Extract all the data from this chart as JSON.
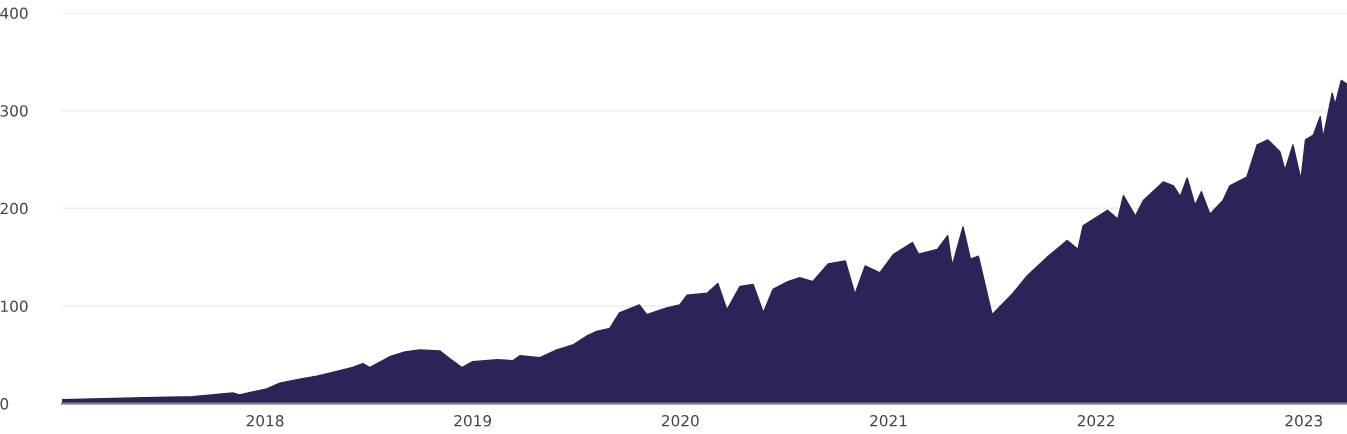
{
  "chart_data": {
    "type": "area",
    "color": "#2b2458",
    "grid": "y",
    "xlim": [
      "2017-01-09",
      "2023-03-18"
    ],
    "xticks": [
      {
        "value": "2018-01-01",
        "label": "2018"
      },
      {
        "value": "2019-01-01",
        "label": "2019"
      },
      {
        "value": "2020-01-01",
        "label": "2020"
      },
      {
        "value": "2021-01-01",
        "label": "2021"
      },
      {
        "value": "2022-01-01",
        "label": "2022"
      },
      {
        "value": "2023-01-01",
        "label": "2023"
      }
    ],
    "ylim": [
      0,
      400
    ],
    "yticks": [
      0,
      100,
      200,
      300,
      400
    ],
    "x": [
      "2017-01-09",
      "2017-06-03",
      "2017-08-27",
      "2017-11-05",
      "2017-11-17",
      "2018-01-04",
      "2018-01-27",
      "2018-03-03",
      "2018-04-02",
      "2018-04-30",
      "2018-06-04",
      "2018-06-22",
      "2018-07-04",
      "2018-08-08",
      "2018-09-04",
      "2018-09-30",
      "2018-11-04",
      "2018-11-22",
      "2018-12-13",
      "2019-01-01",
      "2019-02-13",
      "2019-03-13",
      "2019-03-25",
      "2019-04-29",
      "2019-05-29",
      "2019-06-26",
      "2019-07-20",
      "2019-08-07",
      "2019-08-30",
      "2019-09-16",
      "2019-10-21",
      "2019-11-03",
      "2019-12-08",
      "2019-12-31",
      "2020-01-13",
      "2020-02-17",
      "2020-03-07",
      "2020-03-23",
      "2020-04-15",
      "2020-05-08",
      "2020-05-26",
      "2020-06-12",
      "2020-07-08",
      "2020-07-29",
      "2020-08-21",
      "2020-09-17",
      "2020-10-17",
      "2020-11-03",
      "2020-11-21",
      "2020-12-17",
      "2021-01-10",
      "2021-02-12",
      "2021-02-23",
      "2021-03-28",
      "2021-04-15",
      "2021-04-23",
      "2021-05-12",
      "2021-05-25",
      "2021-06-08",
      "2021-07-02",
      "2021-08-08",
      "2021-09-02",
      "2021-10-07",
      "2021-11-11",
      "2021-11-30",
      "2021-12-09",
      "2022-01-21",
      "2022-02-08",
      "2022-02-18",
      "2022-03-11",
      "2022-03-25",
      "2022-04-29",
      "2022-05-17",
      "2022-05-29",
      "2022-06-10",
      "2022-06-24",
      "2022-07-05",
      "2022-07-20",
      "2022-08-12",
      "2022-08-24",
      "2022-09-23",
      "2022-10-11",
      "2022-10-30",
      "2022-11-20",
      "2022-11-29",
      "2022-12-13",
      "2022-12-27",
      "2023-01-04",
      "2023-01-18",
      "2023-01-30",
      "2023-02-04",
      "2023-02-20",
      "2023-02-25",
      "2023-03-08",
      "2023-03-18"
    ],
    "values": [
      4,
      6,
      7,
      11,
      9,
      15,
      21,
      25,
      28,
      32,
      37,
      41,
      37,
      48,
      53,
      55,
      54,
      46,
      37,
      43,
      45,
      44,
      49,
      47,
      55,
      60,
      69,
      74,
      77,
      93,
      101,
      91,
      98,
      101,
      111,
      113,
      123,
      96,
      120,
      122,
      93,
      117,
      125,
      129,
      125,
      143,
      146,
      112,
      141,
      134,
      153,
      165,
      153,
      158,
      172,
      141,
      181,
      148,
      151,
      91,
      113,
      131,
      150,
      167,
      158,
      182,
      198,
      189,
      213,
      192,
      208,
      227,
      223,
      212,
      231,
      203,
      217,
      194,
      208,
      223,
      232,
      265,
      270,
      258,
      239,
      265,
      229,
      270,
      275,
      294,
      272,
      318,
      306,
      331,
      327
    ]
  }
}
